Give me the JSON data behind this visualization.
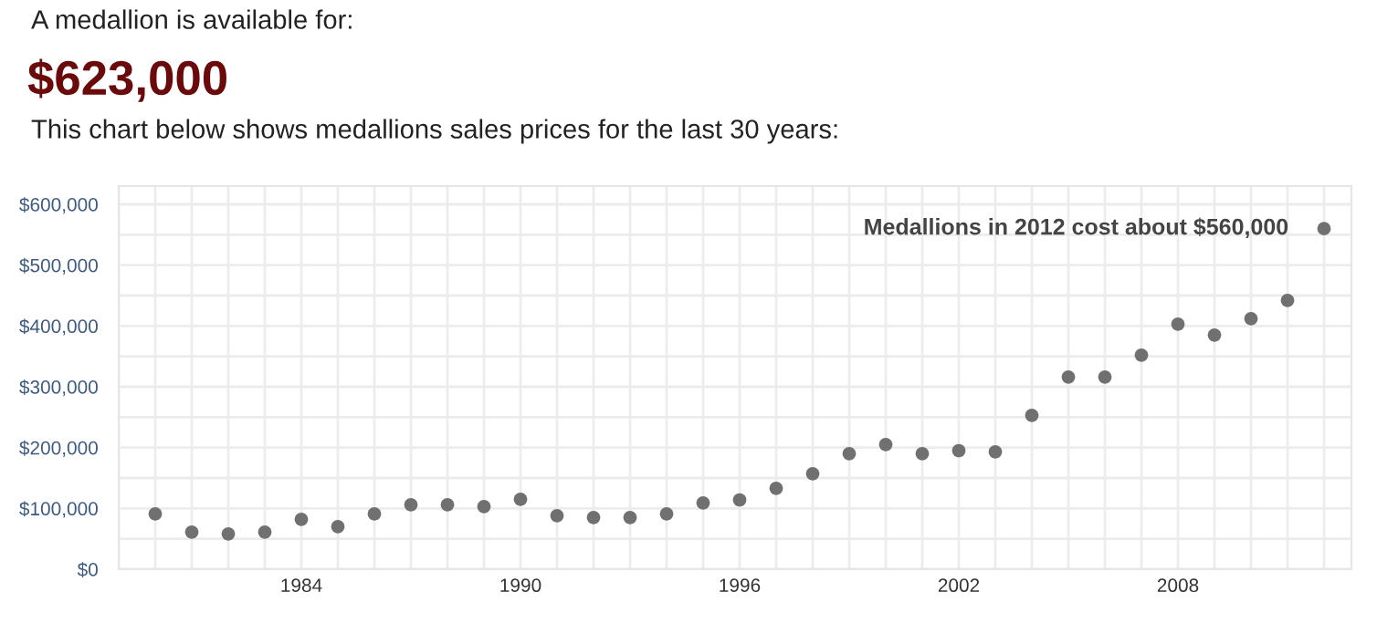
{
  "chart_data": {
    "type": "scatter",
    "title": "$623,000",
    "subtitle": "This chart below shows medallions sales prices for the last 30 years:",
    "annotations": [
      "A medallion is available for:",
      {
        "text": "Medallions in 2012 cost about $560,000",
        "x": 2012,
        "y": 560000
      }
    ],
    "x": [
      1980,
      1981,
      1982,
      1983,
      1984,
      1985,
      1986,
      1987,
      1988,
      1989,
      1990,
      1991,
      1992,
      1993,
      1994,
      1995,
      1996,
      1997,
      1998,
      1999,
      2000,
      2001,
      2002,
      2003,
      2004,
      2005,
      2006,
      2007,
      2008,
      2009,
      2010,
      2011,
      2012
    ],
    "values": [
      91000,
      61000,
      58000,
      61000,
      82000,
      70000,
      91000,
      106000,
      106000,
      103000,
      115000,
      88000,
      85000,
      85000,
      91000,
      109000,
      114000,
      133000,
      157000,
      190000,
      205000,
      190000,
      195000,
      193000,
      253000,
      316000,
      316000,
      352000,
      403000,
      385000,
      412000,
      442000,
      560000
    ],
    "color": "#707070",
    "marker": "circle",
    "xlim": [
      1979,
      2012.75
    ],
    "xticks": [
      {
        "value": 1979,
        "label": null
      },
      {
        "value": 1980,
        "label": null
      },
      {
        "value": 1981,
        "label": null
      },
      {
        "value": 1982,
        "label": null
      },
      {
        "value": 1983,
        "label": null
      },
      1984,
      {
        "value": 1985,
        "label": null
      },
      {
        "value": 1986,
        "label": null
      },
      {
        "value": 1987,
        "label": null
      },
      {
        "value": 1988,
        "label": null
      },
      {
        "value": 1989,
        "label": null
      },
      1990,
      {
        "value": 1991,
        "label": null
      },
      {
        "value": 1992,
        "label": null
      },
      {
        "value": 1993,
        "label": null
      },
      {
        "value": 1994,
        "label": null
      },
      {
        "value": 1995,
        "label": null
      },
      1996,
      {
        "value": 1997,
        "label": null
      },
      {
        "value": 1998,
        "label": null
      },
      {
        "value": 1999,
        "label": null
      },
      {
        "value": 2000,
        "label": null
      },
      {
        "value": 2001,
        "label": null
      },
      2002,
      {
        "value": 2003,
        "label": null
      },
      {
        "value": 2004,
        "label": null
      },
      {
        "value": 2005,
        "label": null
      },
      {
        "value": 2006,
        "label": null
      },
      {
        "value": 2007,
        "label": null
      },
      2008,
      {
        "value": 2009,
        "label": null
      },
      {
        "value": 2010,
        "label": null
      },
      {
        "value": 2011,
        "label": null
      },
      {
        "value": 2012,
        "label": null
      }
    ],
    "ylim": [
      0,
      630000
    ],
    "yticks": [
      {
        "value": 0,
        "label": "$0"
      },
      {
        "value": 50000,
        "label": null
      },
      {
        "value": 100000,
        "label": "$100,000"
      },
      {
        "value": 150000,
        "label": null
      },
      {
        "value": 200000,
        "label": "$200,000"
      },
      {
        "value": 250000,
        "label": null
      },
      {
        "value": 300000,
        "label": "$300,000"
      },
      {
        "value": 350000,
        "label": null
      },
      {
        "value": 400000,
        "label": "$400,000"
      },
      {
        "value": 450000,
        "label": null
      },
      {
        "value": 500000,
        "label": "$500,000"
      },
      {
        "value": 550000,
        "label": null
      },
      {
        "value": 600000,
        "label": "$600,000"
      }
    ],
    "grid": true
  }
}
